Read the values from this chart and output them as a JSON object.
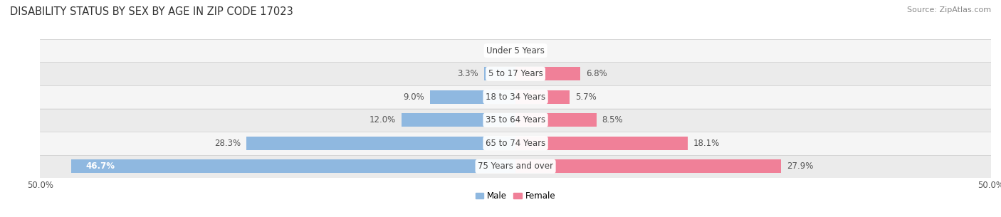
{
  "title": "DISABILITY STATUS BY SEX BY AGE IN ZIP CODE 17023",
  "source": "Source: ZipAtlas.com",
  "categories": [
    "Under 5 Years",
    "5 to 17 Years",
    "18 to 34 Years",
    "35 to 64 Years",
    "65 to 74 Years",
    "75 Years and over"
  ],
  "male_values": [
    0.0,
    3.3,
    9.0,
    12.0,
    28.3,
    46.7
  ],
  "female_values": [
    0.0,
    6.8,
    5.7,
    8.5,
    18.1,
    27.9
  ],
  "male_color": "#8fb8e0",
  "female_color": "#f08098",
  "row_bg_light": "#f5f5f5",
  "row_bg_dark": "#ebebeb",
  "axis_max": 50.0,
  "title_fontsize": 10.5,
  "source_fontsize": 8,
  "label_fontsize": 8.5,
  "category_fontsize": 8.5,
  "tick_fontsize": 8.5,
  "background_color": "#ffffff",
  "bar_height": 0.58
}
